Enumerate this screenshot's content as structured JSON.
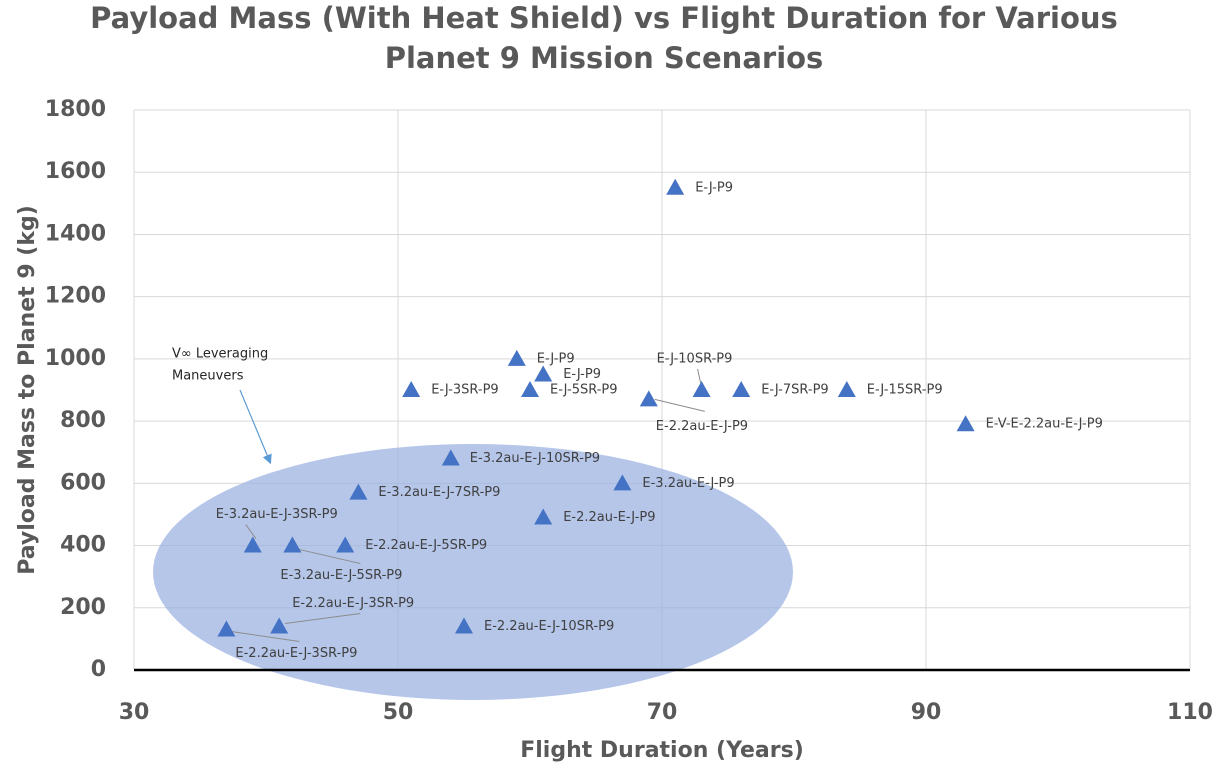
{
  "chart_data": {
    "type": "scatter",
    "title": [
      "Payload Mass (With Heat Shield) vs Flight Duration for Various",
      "Planet 9 Mission Scenarios"
    ],
    "xlabel": "Flight Duration (Years)",
    "ylabel": "Payload Mass to Planet 9 (kg)",
    "annotation": [
      "V∞ Leveraging",
      "Maneuvers"
    ],
    "x": [
      71,
      59,
      61,
      51,
      60,
      69,
      73,
      76,
      84,
      93,
      54,
      67,
      47,
      61,
      39,
      42,
      46,
      37,
      41,
      55
    ],
    "values": [
      1550,
      1000,
      950,
      900,
      900,
      870,
      900,
      900,
      900,
      790,
      680,
      600,
      570,
      490,
      400,
      400,
      400,
      130,
      140,
      140
    ],
    "labels": [
      "E-J-P9",
      "E-J-P9",
      "E-J-P9",
      "E-J-3SR-P9",
      "E-J-5SR-P9",
      "E-2.2au-E-J-P9",
      "E-J-10SR-P9",
      "E-J-7SR-P9",
      "E-J-15SR-P9",
      "E-V-E-2.2au-E-J-P9",
      "E-3.2au-E-J-10SR-P9",
      "E-3.2au-E-J-P9",
      "E-3.2au-E-J-7SR-P9",
      "E-2.2au-E-J-P9",
      "E-3.2au-E-J-3SR-P9",
      "E-3.2au-E-J-5SR-P9",
      "E-2.2au-E-J-5SR-P9",
      "E-2.2au-E-J-3SR-P9",
      "E-2.2au-E-J-3SR-P9",
      "E-2.2au-E-J-10SR-P9"
    ],
    "color": "#4472c4",
    "xlim": [
      30,
      110
    ],
    "xticks": [
      30,
      50,
      70,
      90,
      110
    ],
    "ylim": [
      0,
      1800
    ],
    "yticks": [
      0,
      200,
      400,
      600,
      800,
      1000,
      1200,
      1400,
      1600,
      1800
    ],
    "grid": true
  }
}
